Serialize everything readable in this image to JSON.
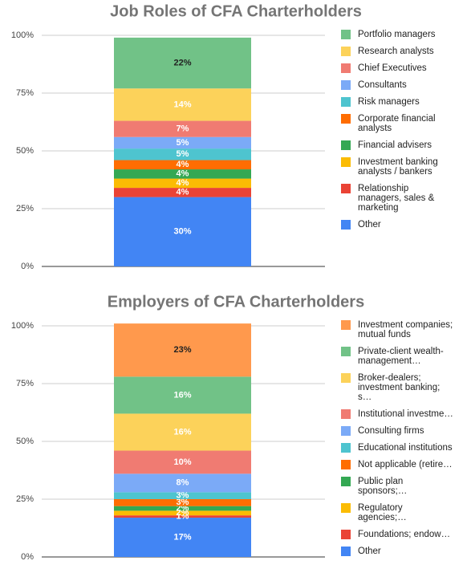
{
  "chart_data": [
    {
      "type": "bar",
      "stacked": true,
      "title": "Job Roles of CFA Charterholders",
      "ylim": [
        0,
        100
      ],
      "yticks": [
        {
          "value": 0,
          "label": "0%"
        },
        {
          "value": 25,
          "label": "25%"
        },
        {
          "value": 50,
          "label": "50%"
        },
        {
          "value": 75,
          "label": "75%"
        },
        {
          "value": 100,
          "label": "100%"
        }
      ],
      "grid": true,
      "legend": "right",
      "series": [
        {
          "name": "Portfolio managers",
          "color": "#71c287",
          "values": [
            22
          ],
          "value_labels": [
            "22%"
          ]
        },
        {
          "name": "Research analysts",
          "color": "#fcd25a",
          "values": [
            14
          ],
          "value_labels": [
            "14%"
          ]
        },
        {
          "name": "Chief Executives",
          "color": "#f07b72",
          "values": [
            7
          ],
          "value_labels": [
            "7%"
          ]
        },
        {
          "name": "Consultants",
          "color": "#7baaf7",
          "values": [
            5
          ],
          "value_labels": [
            "5%"
          ]
        },
        {
          "name": "Risk managers",
          "color": "#4ec4cf",
          "values": [
            5
          ],
          "value_labels": [
            "5%"
          ]
        },
        {
          "name": "Corporate financial analysts",
          "color": "#ff6d01",
          "values": [
            4
          ],
          "value_labels": [
            "4%"
          ]
        },
        {
          "name": "Financial advisers",
          "color": "#34a853",
          "values": [
            4
          ],
          "value_labels": [
            "4%"
          ]
        },
        {
          "name": "Investment banking analysts / bankers",
          "color": "#fbbc04",
          "values": [
            4
          ],
          "value_labels": [
            "4%"
          ]
        },
        {
          "name": "Relationship managers, sales & marketing",
          "color": "#ea4335",
          "values": [
            4
          ],
          "value_labels": [
            "4%"
          ]
        },
        {
          "name": "Other",
          "color": "#4285f4",
          "values": [
            30
          ],
          "value_labels": [
            "30%"
          ]
        }
      ]
    },
    {
      "type": "bar",
      "stacked": true,
      "title": "Employers of CFA Charterholders",
      "ylim": [
        0,
        100
      ],
      "yticks": [
        {
          "value": 0,
          "label": "0%"
        },
        {
          "value": 25,
          "label": "25%"
        },
        {
          "value": 50,
          "label": "50%"
        },
        {
          "value": 75,
          "label": "75%"
        },
        {
          "value": 100,
          "label": "100%"
        }
      ],
      "grid": true,
      "legend": "right",
      "series": [
        {
          "name": "Investment companies; mutual funds",
          "color": "#ff994d",
          "values": [
            23
          ],
          "value_labels": [
            "23%"
          ]
        },
        {
          "name": "Private-client wealth-management…",
          "color": "#71c287",
          "values": [
            16
          ],
          "value_labels": [
            "16%"
          ]
        },
        {
          "name": "Broker-dealers; investment banking; s…",
          "color": "#fcd25a",
          "values": [
            16
          ],
          "value_labels": [
            "16%"
          ]
        },
        {
          "name": "Institutional investme…",
          "color": "#f07b72",
          "values": [
            10
          ],
          "value_labels": [
            "10%"
          ]
        },
        {
          "name": "Consulting firms",
          "color": "#7baaf7",
          "values": [
            8
          ],
          "value_labels": [
            "8%"
          ]
        },
        {
          "name": "Educational institutions",
          "color": "#4ec4cf",
          "values": [
            3
          ],
          "value_labels": [
            "3%"
          ]
        },
        {
          "name": "Not applicable (retire…",
          "color": "#ff6d01",
          "values": [
            3
          ],
          "value_labels": [
            "3%"
          ]
        },
        {
          "name": "Public plan sponsors;…",
          "color": "#34a853",
          "values": [
            2
          ],
          "value_labels": [
            "2%"
          ]
        },
        {
          "name": "Regulatory agencies;…",
          "color": "#fbbc04",
          "values": [
            2
          ],
          "value_labels": [
            "2%"
          ]
        },
        {
          "name": "Foundations; endow…",
          "color": "#ea4335",
          "values": [
            1
          ],
          "value_labels": [
            "1%"
          ]
        },
        {
          "name": "Other",
          "color": "#4285f4",
          "values": [
            17
          ],
          "value_labels": [
            "17%"
          ]
        }
      ]
    }
  ]
}
